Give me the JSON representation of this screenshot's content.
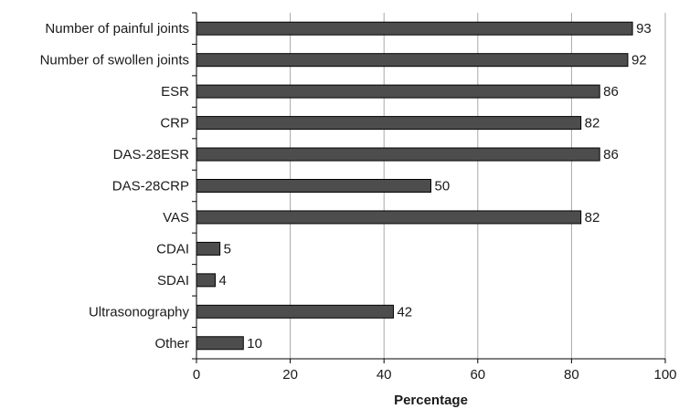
{
  "chart_data": {
    "type": "bar",
    "orientation": "horizontal",
    "categories": [
      "Number of painful joints",
      "Number of swollen joints",
      "ESR",
      "CRP",
      "DAS-28ESR",
      "DAS-28CRP",
      "VAS",
      "CDAI",
      "SDAI",
      "Ultrasonography",
      "Other"
    ],
    "values": [
      93,
      92,
      86,
      82,
      86,
      50,
      82,
      5,
      4,
      42,
      10
    ],
    "value_labels": [
      "93",
      "92",
      "86",
      "82",
      "86",
      "50",
      "82",
      "5",
      "4",
      "42",
      "10"
    ],
    "title": "",
    "xlabel": "Percentage",
    "ylabel": "",
    "xlim": [
      0,
      100
    ],
    "xticks": [
      0,
      20,
      40,
      60,
      80,
      100
    ],
    "xtick_labels": [
      "0",
      "20",
      "40",
      "60",
      "80",
      "100"
    ],
    "grid": "vertical",
    "legend": "none",
    "bar_color": "#4d4d4d",
    "grid_color": "#a8a8a8"
  }
}
